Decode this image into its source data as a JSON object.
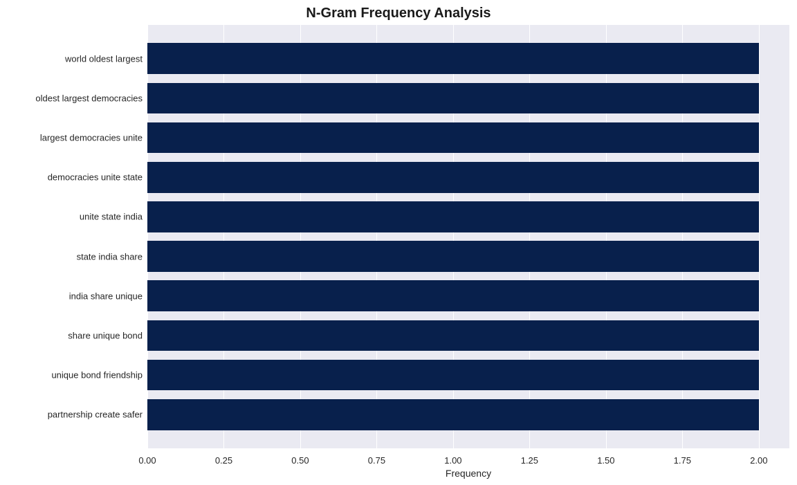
{
  "chart": {
    "type": "bar-horizontal",
    "title": "N-Gram Frequency Analysis",
    "title_fontsize": 20,
    "title_fontweight": "bold",
    "title_color": "#1a1a1a",
    "xlabel": "Frequency",
    "xlabel_fontsize": 14,
    "xlabel_color": "#262626",
    "ylabel": "",
    "background_color": "#ffffff",
    "plot_background_color": "#eaeaf2",
    "grid_color": "#ffffff",
    "bar_color": "#08204c",
    "tick_fontsize": 13,
    "tick_color": "#262626",
    "xlim": [
      0,
      2.1
    ],
    "xtick_step": 0.25,
    "xtick_labels": [
      "0.00",
      "0.25",
      "0.50",
      "0.75",
      "1.00",
      "1.25",
      "1.50",
      "1.75",
      "2.00"
    ],
    "bar_height_ratio": 0.78,
    "categories": [
      "world oldest largest",
      "oldest largest democracies",
      "largest democracies unite",
      "democracies unite state",
      "unite state india",
      "state india share",
      "india share unique",
      "share unique bond",
      "unique bond friendship",
      "partnership create safer"
    ],
    "values": [
      2,
      2,
      2,
      2,
      2,
      2,
      2,
      2,
      2,
      2
    ]
  }
}
